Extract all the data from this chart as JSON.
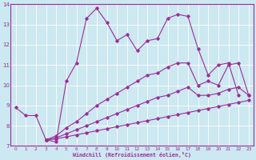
{
  "xlabel": "Windchill (Refroidissement éolien,°C)",
  "xlim": [
    -0.5,
    23.5
  ],
  "ylim": [
    7,
    14
  ],
  "yticks": [
    7,
    8,
    9,
    10,
    11,
    12,
    13,
    14
  ],
  "xticks": [
    0,
    1,
    2,
    3,
    4,
    5,
    6,
    7,
    8,
    9,
    10,
    11,
    12,
    13,
    14,
    15,
    16,
    17,
    18,
    19,
    20,
    21,
    22,
    23
  ],
  "bg_color": "#cce8f0",
  "line_color": "#9b2d9b",
  "grid_color": "#ffffff",
  "line1_x": [
    0,
    1,
    2,
    3,
    4,
    5,
    6,
    7,
    8,
    9,
    10,
    11,
    12,
    13,
    14,
    15,
    16,
    17,
    18,
    19,
    20,
    21,
    22,
    23
  ],
  "line1_y": [
    8.9,
    8.5,
    8.5,
    7.3,
    7.2,
    10.2,
    11.1,
    13.3,
    13.8,
    13.1,
    12.2,
    12.5,
    11.7,
    12.2,
    12.3,
    13.3,
    13.5,
    13.4,
    11.8,
    10.5,
    11.0,
    11.1,
    9.5,
    null
  ],
  "line2_x": [
    3,
    4,
    5,
    6,
    7,
    8,
    9,
    10,
    11,
    12,
    13,
    14,
    15,
    16,
    17,
    18,
    19,
    20,
    21,
    22,
    23
  ],
  "line2_y": [
    7.3,
    7.5,
    7.9,
    8.2,
    8.6,
    9.0,
    9.3,
    9.6,
    9.9,
    10.2,
    10.5,
    10.6,
    10.9,
    11.1,
    11.1,
    10.0,
    10.2,
    10.0,
    11.0,
    11.1,
    9.5
  ],
  "line3_x": [
    3,
    4,
    5,
    6,
    7,
    8,
    9,
    10,
    11,
    12,
    13,
    14,
    15,
    16,
    17,
    18,
    19,
    20,
    21,
    22,
    23
  ],
  "line3_y": [
    7.3,
    7.4,
    7.6,
    7.8,
    8.0,
    8.2,
    8.4,
    8.6,
    8.8,
    9.0,
    9.2,
    9.4,
    9.5,
    9.7,
    9.9,
    9.5,
    9.5,
    9.6,
    9.8,
    9.9,
    9.5
  ],
  "line4_x": [
    3,
    4,
    5,
    6,
    7,
    8,
    9,
    10,
    11,
    12,
    13,
    14,
    15,
    16,
    17,
    18,
    19,
    20,
    21,
    22,
    23
  ],
  "line4_y": [
    7.3,
    7.35,
    7.45,
    7.55,
    7.65,
    7.75,
    7.85,
    7.95,
    8.05,
    8.15,
    8.25,
    8.35,
    8.45,
    8.55,
    8.65,
    8.75,
    8.85,
    8.95,
    9.05,
    9.15,
    9.25
  ]
}
